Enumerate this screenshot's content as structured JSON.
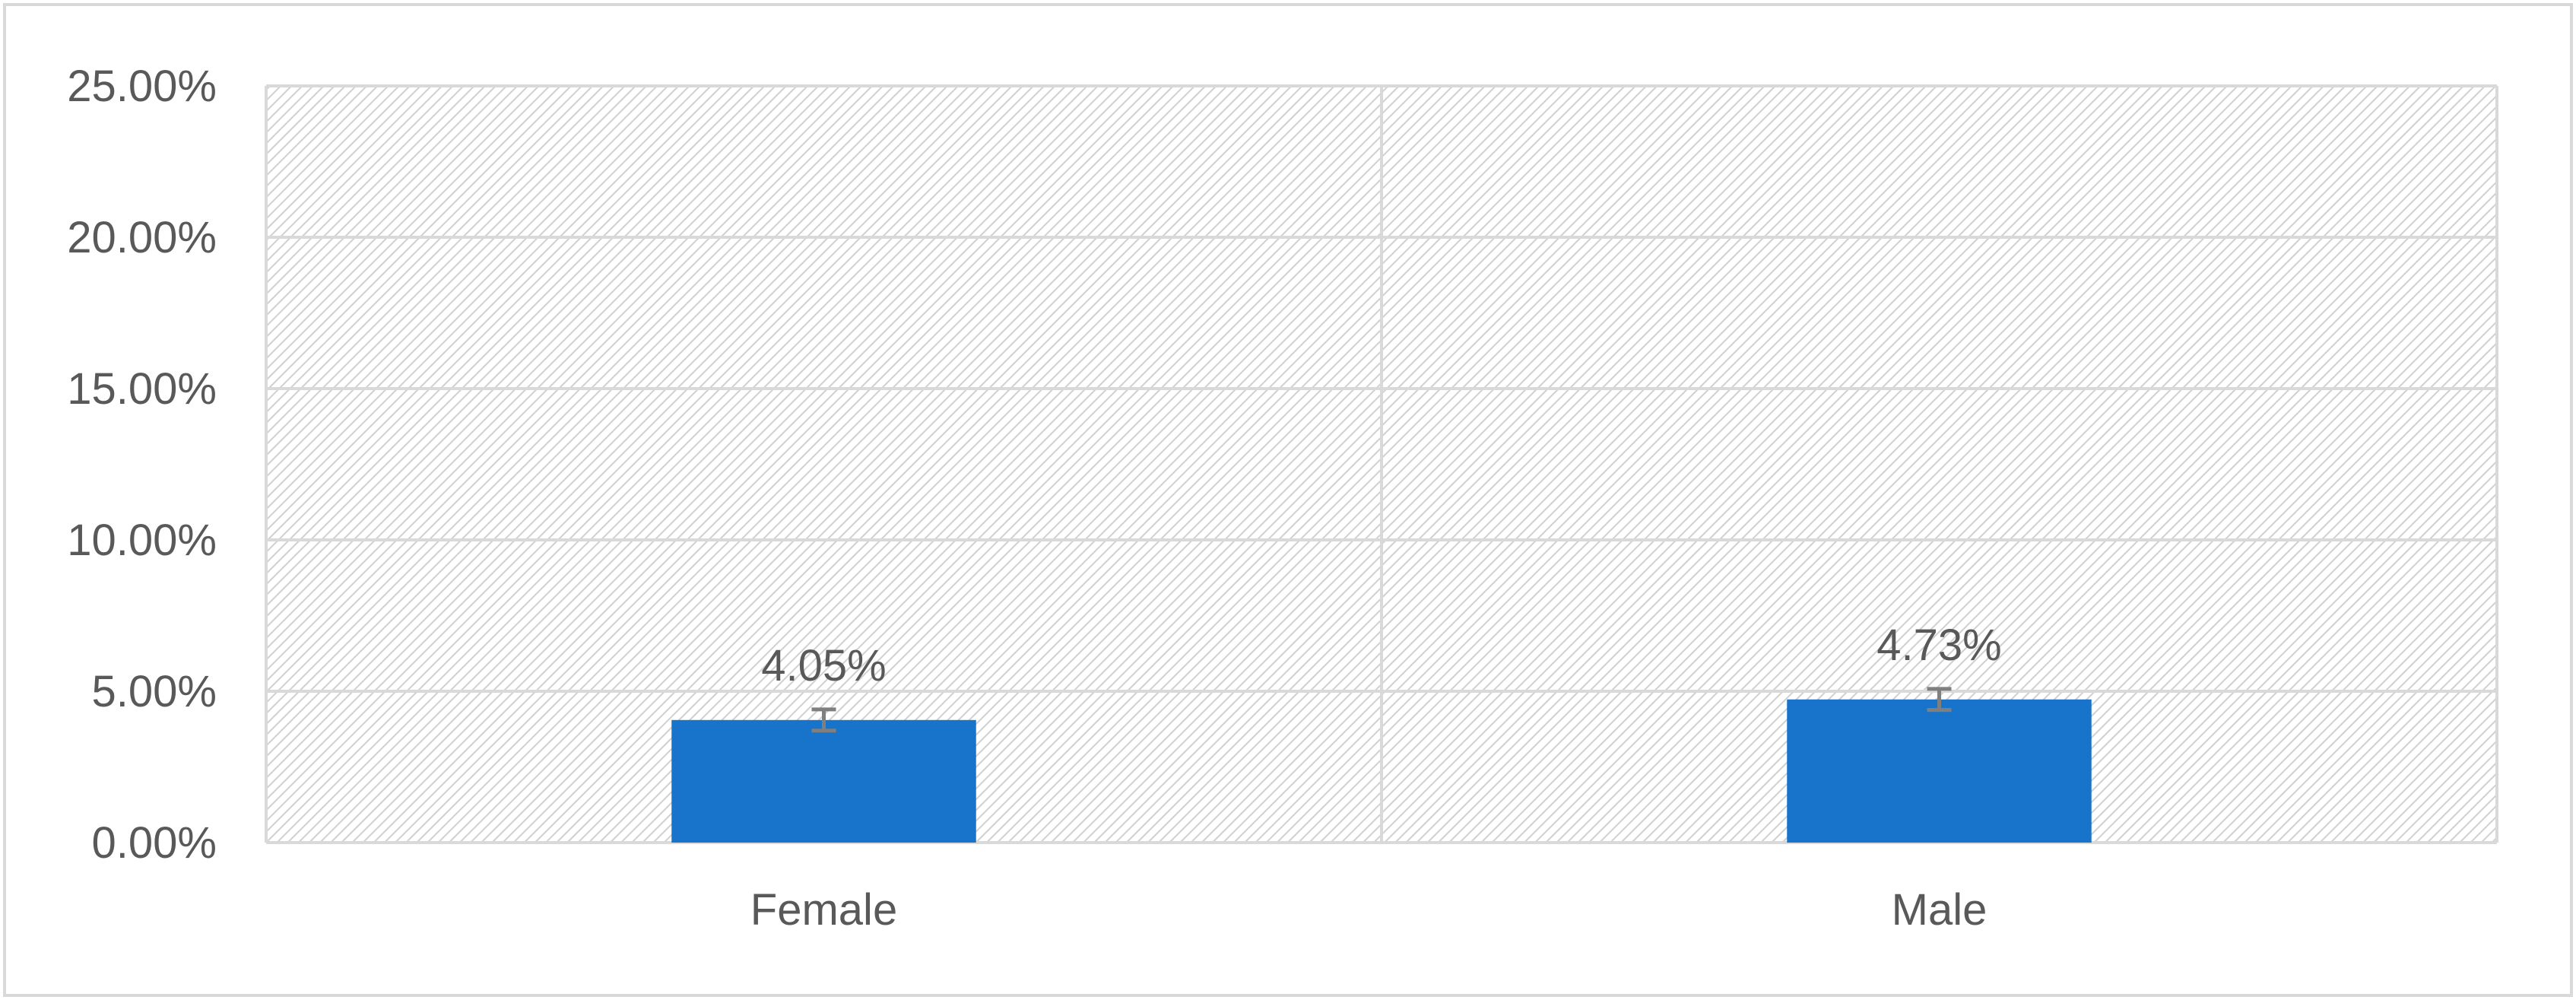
{
  "chart_data": {
    "type": "bar",
    "title": "",
    "xlabel": "",
    "ylabel": "",
    "categories": [
      "Female",
      "Male"
    ],
    "values": [
      4.05,
      4.73
    ],
    "value_labels": [
      "4.05%",
      "4.73%"
    ],
    "error": [
      0.35,
      0.35
    ],
    "ylim": [
      0,
      25
    ],
    "yticks": [
      0,
      5,
      10,
      15,
      20,
      25
    ],
    "ytick_labels": [
      "0.00%",
      "5.00%",
      "10.00%",
      "15.00%",
      "20.00%",
      "25.00%"
    ],
    "grid": true,
    "plot_background": "diagonal-hatch",
    "legend": "none",
    "colors": {
      "bar": "#1873CB",
      "grid": "#D9D9D9",
      "hatch": "#D0D0D0",
      "error_bar": "#7F7F7F",
      "text": "#595959",
      "frame": "#D9D9D9"
    }
  }
}
